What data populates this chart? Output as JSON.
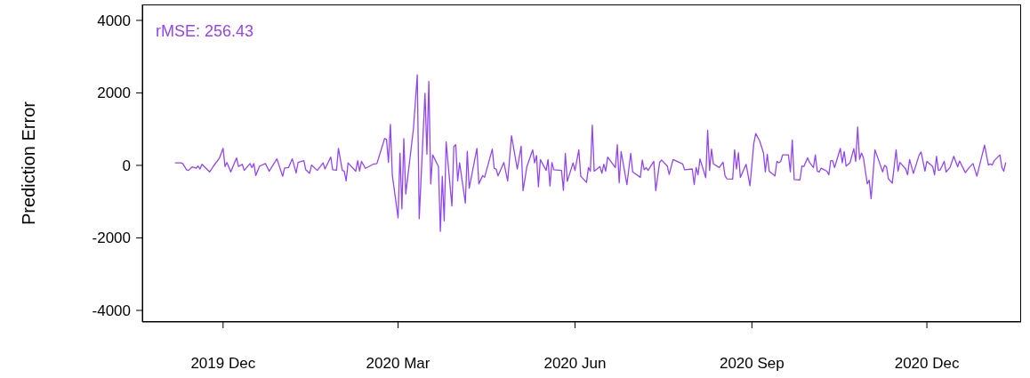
{
  "chart_data": {
    "type": "line",
    "ylabel": "Prediction Error",
    "annotations": [
      "rMSE: 256.43"
    ],
    "xlim": [
      "2019-10-20",
      "2021-01-19"
    ],
    "xticks": [
      {
        "value": "2019-12-01",
        "label": "2019 Dec"
      },
      {
        "value": "2020-03-01",
        "label": "2020 Mar"
      },
      {
        "value": "2020-06-01",
        "label": "2020 Jun"
      },
      {
        "value": "2020-09-01",
        "label": "2020 Sep"
      },
      {
        "value": "2020-12-01",
        "label": "2020 Dec"
      }
    ],
    "ylim": [
      -4320,
      4440
    ],
    "yticks": [
      -4000,
      -2000,
      0,
      2000,
      4000
    ],
    "marker": "none",
    "line_style": "solid",
    "x": [
      "2019-11-06",
      "2019-11-09",
      "2019-11-10",
      "2019-11-12",
      "2019-11-13",
      "2019-11-15",
      "2019-11-17",
      "2019-11-18",
      "2019-11-19",
      "2019-11-20",
      "2019-11-24",
      "2019-11-26",
      "2019-11-29",
      "2019-12-01",
      "2019-12-02",
      "2019-12-03",
      "2019-12-05",
      "2019-12-08",
      "2019-12-09",
      "2019-12-11",
      "2019-12-12",
      "2019-12-15",
      "2019-12-16",
      "2019-12-17",
      "2019-12-18",
      "2019-12-20",
      "2019-12-23",
      "2019-12-25",
      "2019-12-29",
      "2020-01-01",
      "2020-01-02",
      "2020-01-04",
      "2020-01-06",
      "2020-01-08",
      "2020-01-09",
      "2020-01-12",
      "2020-01-13",
      "2020-01-15",
      "2020-01-16",
      "2020-01-19",
      "2020-01-22",
      "2020-01-23",
      "2020-01-26",
      "2020-01-27",
      "2020-01-29",
      "2020-01-30",
      "2020-02-01",
      "2020-02-02",
      "2020-02-03",
      "2020-02-04",
      "2020-02-08",
      "2020-02-09",
      "2020-02-10",
      "2020-02-11",
      "2020-02-13",
      "2020-02-17",
      "2020-02-19",
      "2020-02-23",
      "2020-02-24",
      "2020-02-25",
      "2020-02-26",
      "2020-02-27",
      "2020-03-01",
      "2020-03-02",
      "2020-03-03",
      "2020-03-04",
      "2020-03-05",
      "2020-03-09",
      "2020-03-11",
      "2020-03-12",
      "2020-03-15",
      "2020-03-16",
      "2020-03-17",
      "2020-03-18",
      "2020-03-19",
      "2020-03-22",
      "2020-03-23",
      "2020-03-24",
      "2020-03-25",
      "2020-03-26",
      "2020-03-29",
      "2020-03-30",
      "2020-03-31",
      "2020-04-01",
      "2020-04-02",
      "2020-04-05",
      "2020-04-06",
      "2020-04-07",
      "2020-04-11",
      "2020-04-12",
      "2020-04-14",
      "2020-04-15",
      "2020-04-19",
      "2020-04-20",
      "2020-04-21",
      "2020-04-22",
      "2020-04-25",
      "2020-04-27",
      "2020-04-29",
      "2020-05-02",
      "2020-05-04",
      "2020-05-05",
      "2020-05-07",
      "2020-05-10",
      "2020-05-11",
      "2020-05-12",
      "2020-05-13",
      "2020-05-14",
      "2020-05-17",
      "2020-05-18",
      "2020-05-19",
      "2020-05-20",
      "2020-05-21",
      "2020-05-25",
      "2020-05-26",
      "2020-05-27",
      "2020-05-28",
      "2020-05-31",
      "2020-06-01",
      "2020-06-03",
      "2020-06-04",
      "2020-06-07",
      "2020-06-08",
      "2020-06-09",
      "2020-06-10",
      "2020-06-11",
      "2020-06-14",
      "2020-06-15",
      "2020-06-16",
      "2020-06-17",
      "2020-06-18",
      "2020-06-22",
      "2020-06-23",
      "2020-06-24",
      "2020-06-25",
      "2020-06-28",
      "2020-06-30",
      "2020-07-01",
      "2020-07-05",
      "2020-07-06",
      "2020-07-07",
      "2020-07-08",
      "2020-07-09",
      "2020-07-12",
      "2020-07-13",
      "2020-07-15",
      "2020-07-16",
      "2020-07-19",
      "2020-07-20",
      "2020-07-22",
      "2020-07-27",
      "2020-07-28",
      "2020-08-01",
      "2020-08-02",
      "2020-08-03",
      "2020-08-04",
      "2020-08-05",
      "2020-08-08",
      "2020-08-09",
      "2020-08-10",
      "2020-08-11",
      "2020-08-12",
      "2020-08-15",
      "2020-08-17",
      "2020-08-18",
      "2020-08-19",
      "2020-08-22",
      "2020-08-23",
      "2020-08-24",
      "2020-08-25",
      "2020-08-26",
      "2020-08-29",
      "2020-08-31",
      "2020-09-02",
      "2020-09-03",
      "2020-09-05",
      "2020-09-07",
      "2020-09-08",
      "2020-09-09",
      "2020-09-10",
      "2020-09-13",
      "2020-09-14",
      "2020-09-15",
      "2020-09-16",
      "2020-09-17",
      "2020-09-20",
      "2020-09-21",
      "2020-09-22",
      "2020-09-23",
      "2020-09-26",
      "2020-09-27",
      "2020-09-28",
      "2020-09-30",
      "2020-10-01",
      "2020-10-03",
      "2020-10-04",
      "2020-10-05",
      "2020-10-06",
      "2020-10-07",
      "2020-10-10",
      "2020-10-11",
      "2020-10-12",
      "2020-10-13",
      "2020-10-14",
      "2020-10-17",
      "2020-10-18",
      "2020-10-19",
      "2020-10-20",
      "2020-10-22",
      "2020-10-24",
      "2020-10-25",
      "2020-10-26",
      "2020-10-27",
      "2020-10-28",
      "2020-10-29",
      "2020-10-31",
      "2020-11-01",
      "2020-11-02",
      "2020-11-04",
      "2020-11-06",
      "2020-11-08",
      "2020-11-09",
      "2020-11-10",
      "2020-11-11",
      "2020-11-13",
      "2020-11-15",
      "2020-11-16",
      "2020-11-17",
      "2020-11-20",
      "2020-11-21",
      "2020-11-22",
      "2020-11-24",
      "2020-11-27",
      "2020-11-28",
      "2020-11-30",
      "2020-12-01",
      "2020-12-04",
      "2020-12-05",
      "2020-12-06",
      "2020-12-07",
      "2020-12-08",
      "2020-12-10",
      "2020-12-11",
      "2020-12-13",
      "2020-12-15",
      "2020-12-17",
      "2020-12-18",
      "2020-12-21",
      "2020-12-23",
      "2020-12-25",
      "2020-12-27",
      "2020-12-31",
      "2021-01-02",
      "2021-01-03",
      "2021-01-04",
      "2021-01-05",
      "2021-01-08",
      "2021-01-09",
      "2021-01-10",
      "2021-01-11"
    ],
    "series": [
      {
        "color": "#9146f0",
        "values": [
          70,
          70,
          50,
          -120,
          -140,
          -40,
          -80,
          -20,
          -100,
          30,
          -180,
          -20,
          190,
          470,
          -30,
          80,
          -180,
          210,
          -30,
          30,
          -140,
          50,
          -60,
          50,
          -280,
          -20,
          50,
          -160,
          180,
          -300,
          -70,
          -60,
          180,
          -210,
          80,
          130,
          -120,
          -220,
          10,
          -140,
          70,
          -100,
          230,
          -120,
          -130,
          470,
          -140,
          -160,
          -430,
          70,
          -160,
          130,
          -160,
          110,
          -80,
          30,
          50,
          740,
          720,
          80,
          1130,
          -260,
          -1450,
          340,
          -1200,
          740,
          -790,
          1010,
          2500,
          -1470,
          1990,
          310,
          2320,
          -510,
          290,
          -30,
          -1820,
          -300,
          -1530,
          650,
          -1120,
          520,
          570,
          -430,
          70,
          -1040,
          390,
          -630,
          470,
          -510,
          -280,
          -330,
          450,
          -80,
          -100,
          -290,
          80,
          -430,
          820,
          -100,
          530,
          -700,
          -30,
          430,
          70,
          270,
          -590,
          160,
          -140,
          160,
          -570,
          80,
          -120,
          -140,
          -690,
          330,
          -440,
          70,
          -140,
          430,
          -300,
          -470,
          -60,
          -160,
          1110,
          -160,
          -30,
          -220,
          30,
          -160,
          230,
          -60,
          570,
          -480,
          380,
          -530,
          330,
          -180,
          -330,
          150,
          -120,
          -60,
          -140,
          110,
          -700,
          80,
          150,
          -20,
          -250,
          160,
          40,
          -120,
          -100,
          -530,
          -60,
          -260,
          180,
          -340,
          970,
          -140,
          450,
          40,
          -60,
          90,
          -280,
          -370,
          -380,
          430,
          -100,
          350,
          -330,
          30,
          -560,
          610,
          880,
          680,
          350,
          -180,
          310,
          -160,
          -290,
          110,
          70,
          110,
          290,
          290,
          -180,
          700,
          -390,
          -400,
          -20,
          -30,
          210,
          80,
          -60,
          290,
          -160,
          -180,
          -80,
          -160,
          -260,
          130,
          130,
          -60,
          470,
          70,
          380,
          -20,
          70,
          460,
          110,
          1060,
          170,
          340,
          210,
          -510,
          -410,
          -920,
          430,
          130,
          -180,
          0,
          -40,
          -370,
          -490,
          430,
          -160,
          80,
          -100,
          -260,
          160,
          -220,
          290,
          370,
          -160,
          110,
          -30,
          -260,
          250,
          -140,
          -120,
          110,
          -180,
          -60,
          250,
          -40,
          120,
          -200,
          -60,
          50,
          -300,
          560,
          10,
          40,
          10,
          130,
          290,
          -60,
          -160,
          80
        ]
      }
    ]
  }
}
